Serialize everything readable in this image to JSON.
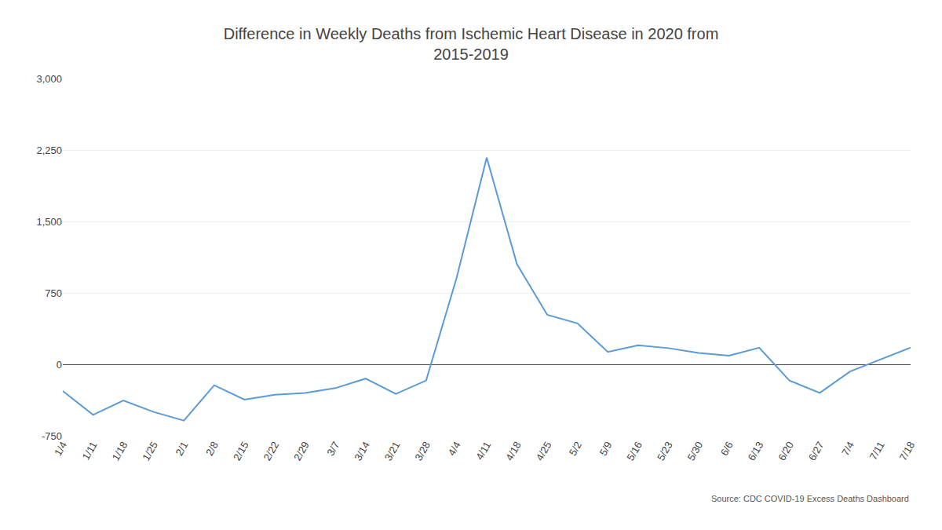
{
  "chart_data": {
    "type": "line",
    "title": "Difference in Weekly Deaths from Ischemic Heart Disease in 2020 from\n2015-2019",
    "annotations": [
      "Source: CDC COVID-19 Excess Deaths Dashboard"
    ],
    "categories": [
      "1/4",
      "1/11",
      "1/18",
      "1/25",
      "2/1",
      "2/8",
      "2/15",
      "2/22",
      "2/29",
      "3/7",
      "3/14",
      "3/21",
      "3/28",
      "4/4",
      "4/11",
      "4/18",
      "4/25",
      "5/2",
      "5/9",
      "5/16",
      "5/23",
      "5/30",
      "6/6",
      "6/13",
      "6/20",
      "6/27",
      "7/4",
      "7/11",
      "7/18"
    ],
    "values": [
      -280,
      -530,
      -380,
      -500,
      -590,
      -220,
      -370,
      -320,
      -300,
      -250,
      -150,
      -310,
      -170,
      900,
      2170,
      1050,
      520,
      430,
      130,
      200,
      170,
      120,
      90,
      175,
      -170,
      -300,
      -75,
      50,
      175
    ],
    "color": "#5B9BD5",
    "ylim": [
      -750,
      3000
    ],
    "yticks": [
      {
        "value": 3000,
        "label": "3,000"
      },
      {
        "value": 2250,
        "label": "2,250"
      },
      {
        "value": 1500,
        "label": "1,500"
      },
      750,
      0,
      -750
    ],
    "grid": true
  }
}
